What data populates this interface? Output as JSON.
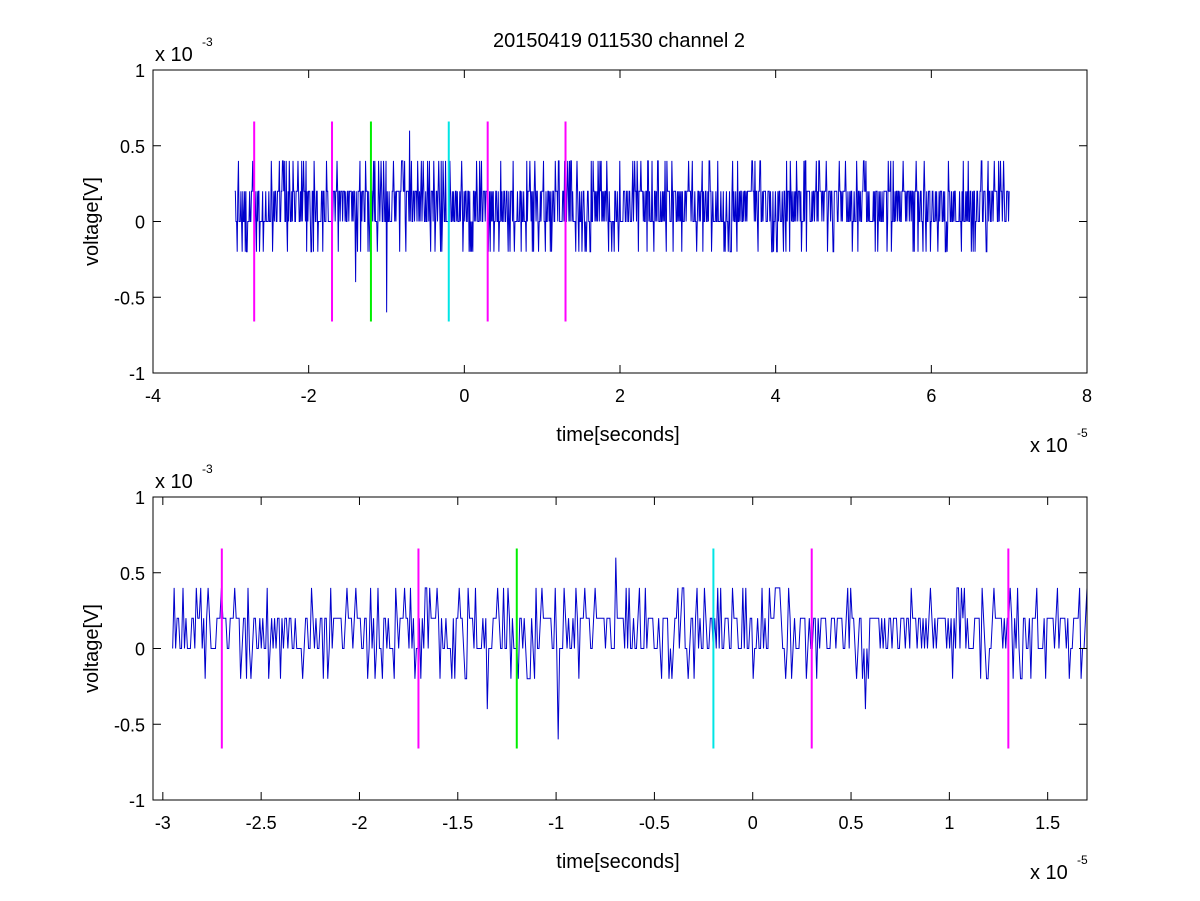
{
  "figure": {
    "title": "20150419 011530 channel 2"
  },
  "chart_data": [
    {
      "type": "line",
      "xlabel": "time[seconds]",
      "ylabel": "voltage[V]",
      "x_exponent_prefix": "x 10",
      "x_exponent_power": "-5",
      "y_exponent_prefix": "x 10",
      "y_exponent_power": "-3",
      "xlim": [
        -4,
        8
      ],
      "ylim": [
        -1,
        1
      ],
      "x_ticks": [
        -4,
        -2,
        0,
        2,
        4,
        6,
        8
      ],
      "x_tick_labels": [
        "-4",
        "-2",
        "0",
        "2",
        "4",
        "6",
        "8"
      ],
      "y_ticks": [
        -1,
        -0.5,
        0,
        0.5,
        1
      ],
      "y_tick_labels": [
        "-1",
        "-0.5",
        "0",
        "0.5",
        "1"
      ],
      "signal": {
        "color": "#0000cc",
        "x_start": -2.95,
        "x_end": 7.0,
        "levels": [
          -0.2,
          0,
          0.2,
          0.4
        ],
        "peaks": [
          [
            -1.0,
            -0.6
          ],
          [
            -1.4,
            -0.4
          ],
          [
            -0.7,
            0.6
          ],
          [
            -0.3,
            0.4
          ],
          [
            -2.9,
            0.4
          ]
        ]
      },
      "markers": [
        {
          "x": -2.7,
          "color": "#ff00ff",
          "y_min": -0.66,
          "y_max": 0.66
        },
        {
          "x": -1.7,
          "color": "#ff00ff",
          "y_min": -0.66,
          "y_max": 0.66
        },
        {
          "x": -1.2,
          "color": "#00ee00",
          "y_min": -0.66,
          "y_max": 0.66
        },
        {
          "x": -0.2,
          "color": "#00e5e5",
          "y_min": -0.66,
          "y_max": 0.66
        },
        {
          "x": 0.3,
          "color": "#ff00ff",
          "y_min": -0.66,
          "y_max": 0.66
        },
        {
          "x": 1.3,
          "color": "#ff00ff",
          "y_min": -0.66,
          "y_max": 0.66
        }
      ]
    },
    {
      "type": "line",
      "xlabel": "time[seconds]",
      "ylabel": "voltage[V]",
      "x_exponent_prefix": "x 10",
      "x_exponent_power": "-5",
      "y_exponent_prefix": "x 10",
      "y_exponent_power": "-3",
      "xlim": [
        -3.05,
        1.7
      ],
      "ylim": [
        -1,
        1
      ],
      "x_ticks": [
        -3,
        -2.5,
        -2,
        -1.5,
        -1,
        -0.5,
        0,
        0.5,
        1,
        1.5
      ],
      "x_tick_labels": [
        "-3",
        "-2.5",
        "-2",
        "-1.5",
        "-1",
        "-0.5",
        "0",
        "0.5",
        "1",
        "1.5"
      ],
      "y_ticks": [
        -1,
        -0.5,
        0,
        0.5,
        1
      ],
      "y_tick_labels": [
        "-1",
        "-0.5",
        "0",
        "0.5",
        "1"
      ],
      "signal": {
        "color": "#0000cc",
        "x_start": -2.95,
        "x_end": 1.7,
        "levels": [
          -0.2,
          0,
          0.2,
          0.4
        ],
        "peaks": [
          [
            -0.99,
            -0.6
          ],
          [
            -1.35,
            -0.4
          ],
          [
            -0.7,
            0.6
          ],
          [
            0.57,
            -0.4
          ],
          [
            -2.7,
            0.4
          ],
          [
            -1.45,
            0.4
          ],
          [
            -0.9,
            0.4
          ],
          [
            -0.1,
            0.4
          ],
          [
            0.5,
            0.4
          ],
          [
            1.05,
            0.4
          ],
          [
            1.35,
            0.4
          ],
          [
            1.55,
            0.4
          ]
        ]
      },
      "markers": [
        {
          "x": -2.7,
          "color": "#ff00ff",
          "y_min": -0.66,
          "y_max": 0.66
        },
        {
          "x": -1.7,
          "color": "#ff00ff",
          "y_min": -0.66,
          "y_max": 0.66
        },
        {
          "x": -1.2,
          "color": "#00ee00",
          "y_min": -0.66,
          "y_max": 0.66
        },
        {
          "x": -0.2,
          "color": "#00e5e5",
          "y_min": -0.66,
          "y_max": 0.66
        },
        {
          "x": 0.3,
          "color": "#ff00ff",
          "y_min": -0.66,
          "y_max": 0.66
        },
        {
          "x": 1.3,
          "color": "#ff00ff",
          "y_min": -0.66,
          "y_max": 0.66
        }
      ]
    }
  ]
}
